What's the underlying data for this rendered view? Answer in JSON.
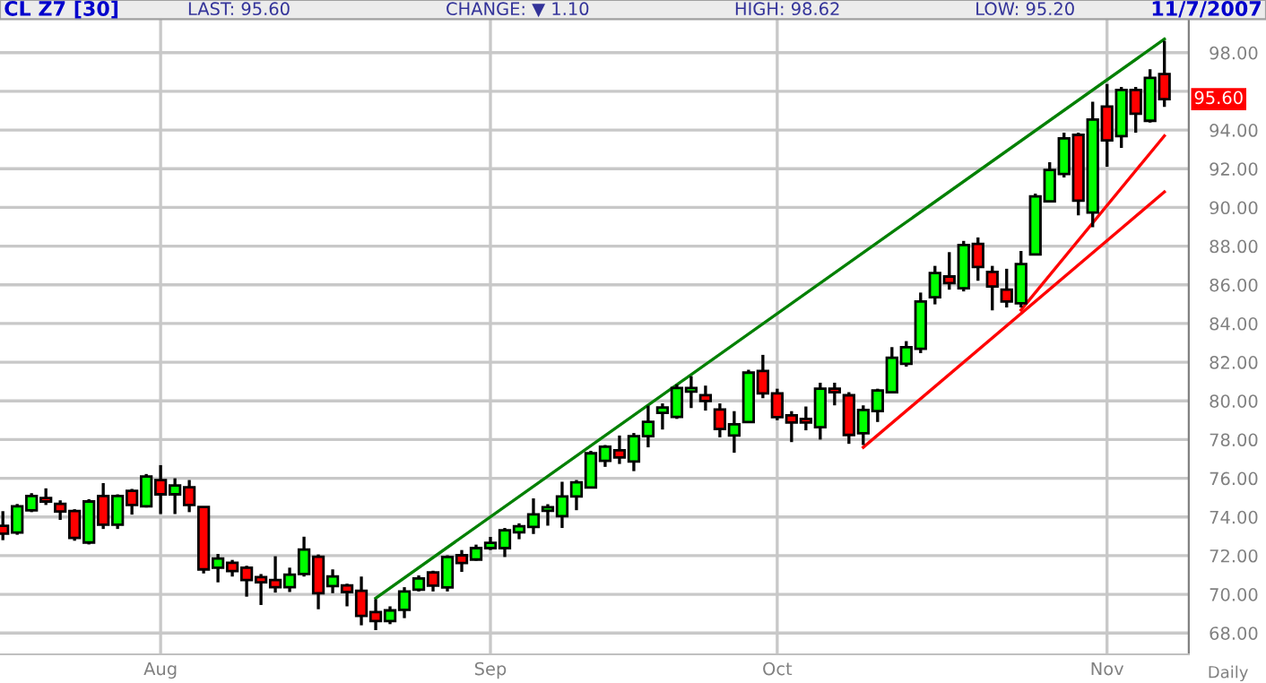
{
  "chart_data": {
    "type": "candlestick",
    "title": "CL Z7 [30]",
    "annotations": [
      "LAST: 95.60",
      "CHANGE: ▼ 1.10",
      "HIGH: 98.62",
      "LOW: 95.20",
      "11/7/2007",
      "Daily",
      {
        "text": "95.60",
        "y": 95.6
      }
    ],
    "categories": [
      null,
      null,
      null,
      null,
      null,
      null,
      null,
      null,
      null,
      null,
      null,
      "Aug",
      null,
      null,
      null,
      null,
      null,
      null,
      null,
      null,
      null,
      null,
      null,
      null,
      null,
      null,
      null,
      null,
      null,
      null,
      null,
      null,
      null,
      null,
      "Sep",
      null,
      null,
      null,
      null,
      null,
      null,
      null,
      null,
      null,
      null,
      null,
      null,
      null,
      null,
      null,
      null,
      null,
      null,
      null,
      "Oct",
      null,
      null,
      null,
      null,
      null,
      null,
      null,
      null,
      null,
      null,
      null,
      null,
      null,
      null,
      null,
      null,
      null,
      null,
      null,
      null,
      null,
      null,
      "Nov",
      null,
      null,
      null,
      null
    ],
    "ohlc": [
      [
        73.54,
        74.3,
        72.8,
        73.14
      ],
      [
        73.2,
        74.67,
        73.08,
        74.55
      ],
      [
        74.34,
        75.23,
        74.25,
        75.08
      ],
      [
        74.98,
        75.48,
        74.62,
        74.8
      ],
      [
        74.68,
        74.86,
        73.85,
        74.28
      ],
      [
        74.31,
        74.4,
        72.77,
        72.92
      ],
      [
        72.68,
        74.92,
        72.58,
        74.8
      ],
      [
        75.08,
        75.75,
        73.38,
        73.6
      ],
      [
        73.6,
        75.17,
        73.38,
        75.08
      ],
      [
        75.35,
        75.45,
        74.12,
        74.62
      ],
      [
        74.55,
        76.22,
        74.49,
        76.09
      ],
      [
        75.91,
        76.68,
        74.15,
        75.17
      ],
      [
        75.17,
        76.0,
        74.15,
        75.63
      ],
      [
        75.54,
        75.91,
        74.25,
        74.62
      ],
      [
        74.52,
        74.52,
        71.08,
        71.29
      ],
      [
        71.38,
        72.09,
        70.62,
        71.85
      ],
      [
        71.63,
        71.78,
        70.92,
        71.2
      ],
      [
        71.38,
        71.48,
        69.88,
        70.74
      ],
      [
        70.89,
        71.05,
        69.45,
        70.62
      ],
      [
        70.74,
        71.97,
        70.09,
        70.37
      ],
      [
        70.37,
        71.38,
        70.12,
        71.02
      ],
      [
        71.05,
        72.98,
        70.92,
        72.31
      ],
      [
        71.94,
        72.06,
        69.23,
        70.06
      ],
      [
        70.43,
        71.29,
        70.06,
        70.92
      ],
      [
        70.46,
        70.55,
        69.38,
        70.12
      ],
      [
        70.18,
        70.92,
        68.4,
        68.89
      ],
      [
        69.08,
        69.75,
        68.15,
        68.62
      ],
      [
        68.62,
        69.38,
        68.46,
        69.17
      ],
      [
        69.2,
        70.37,
        68.77,
        70.15
      ],
      [
        70.24,
        70.98,
        70.15,
        70.82
      ],
      [
        71.13,
        71.22,
        70.15,
        70.45
      ],
      [
        70.36,
        72.02,
        70.15,
        71.93
      ],
      [
        72.02,
        72.29,
        71.16,
        71.62
      ],
      [
        71.8,
        72.57,
        71.74,
        72.39
      ],
      [
        72.39,
        72.97,
        72.29,
        72.66
      ],
      [
        72.39,
        73.43,
        71.93,
        73.31
      ],
      [
        73.21,
        73.67,
        72.85,
        73.52
      ],
      [
        73.49,
        74.96,
        73.12,
        74.13
      ],
      [
        74.32,
        74.66,
        73.55,
        74.5
      ],
      [
        74.04,
        75.82,
        73.43,
        75.06
      ],
      [
        75.06,
        75.91,
        74.35,
        75.79
      ],
      [
        75.52,
        77.42,
        75.52,
        77.29
      ],
      [
        76.9,
        77.72,
        76.59,
        77.63
      ],
      [
        77.45,
        78.21,
        76.74,
        77.08
      ],
      [
        76.87,
        78.34,
        76.37,
        78.18
      ],
      [
        78.18,
        79.75,
        77.6,
        78.92
      ],
      [
        79.38,
        79.87,
        78.52,
        79.66
      ],
      [
        79.17,
        80.85,
        79.07,
        80.67
      ],
      [
        80.48,
        81.28,
        79.63,
        80.67
      ],
      [
        80.3,
        80.79,
        79.5,
        79.99
      ],
      [
        79.56,
        79.87,
        78.12,
        78.55
      ],
      [
        78.21,
        79.47,
        77.32,
        78.79
      ],
      [
        78.91,
        81.61,
        78.91,
        81.46
      ],
      [
        81.55,
        82.38,
        80.14,
        80.39
      ],
      [
        80.39,
        80.63,
        79.0,
        79.16
      ],
      [
        79.25,
        79.47,
        77.87,
        78.88
      ],
      [
        79.07,
        79.71,
        78.48,
        78.88
      ],
      [
        78.64,
        80.94,
        78.0,
        80.63
      ],
      [
        80.63,
        80.94,
        79.77,
        80.45
      ],
      [
        80.29,
        80.45,
        77.78,
        78.24
      ],
      [
        78.33,
        79.77,
        77.72,
        79.53
      ],
      [
        79.47,
        80.63,
        78.91,
        80.54
      ],
      [
        80.45,
        82.78,
        80.39,
        82.23
      ],
      [
        81.92,
        83.09,
        81.77,
        82.78
      ],
      [
        82.69,
        85.6,
        82.47,
        85.14
      ],
      [
        85.36,
        86.98,
        84.99,
        86.61
      ],
      [
        86.43,
        87.69,
        85.75,
        86.09
      ],
      [
        85.82,
        88.27,
        85.66,
        88.06
      ],
      [
        88.12,
        88.45,
        86.21,
        86.92
      ],
      [
        86.67,
        86.98,
        84.68,
        85.91
      ],
      [
        85.75,
        86.83,
        84.83,
        85.14
      ],
      [
        85.05,
        87.75,
        84.83,
        87.07
      ],
      [
        87.57,
        90.72,
        87.57,
        90.57
      ],
      [
        90.32,
        92.34,
        90.26,
        91.94
      ],
      [
        91.73,
        93.87,
        91.55,
        93.57
      ],
      [
        93.75,
        93.87,
        89.59,
        90.35
      ],
      [
        89.74,
        95.46,
        88.98,
        94.54
      ],
      [
        95.22,
        96.38,
        92.1,
        93.47
      ],
      [
        93.69,
        96.23,
        93.08,
        96.07
      ],
      [
        96.07,
        96.23,
        93.87,
        94.85
      ],
      [
        94.48,
        97.14,
        94.39,
        96.7
      ],
      [
        96.9,
        98.62,
        95.2,
        95.6
      ]
    ],
    "colors": [
      "#ff0000",
      "#00ff00",
      "#00ff00",
      "#ff0000",
      "#ff0000",
      "#ff0000",
      "#00ff00",
      "#ff0000",
      "#00ff00",
      "#ff0000",
      "#00ff00",
      "#ff0000",
      "#00ff00",
      "#ff0000",
      "#ff0000",
      "#00ff00",
      "#ff0000",
      "#ff0000",
      "#ff0000",
      "#ff0000",
      "#00ff00",
      "#00ff00",
      "#ff0000",
      "#00ff00",
      "#ff0000",
      "#ff0000",
      "#ff0000",
      "#00ff00",
      "#00ff00",
      "#00ff00",
      "#ff0000",
      "#00ff00",
      "#ff0000",
      "#00ff00",
      "#00ff00",
      "#00ff00",
      "#00ff00",
      "#00ff00",
      "#00ff00",
      "#00ff00",
      "#00ff00",
      "#00ff00",
      "#00ff00",
      "#ff0000",
      "#00ff00",
      "#00ff00",
      "#00ff00",
      "#00ff00",
      "#00ff00",
      "#ff0000",
      "#ff0000",
      "#00ff00",
      "#00ff00",
      "#ff0000",
      "#ff0000",
      "#ff0000",
      "#ff0000",
      "#00ff00",
      "#ff0000",
      "#ff0000",
      "#00ff00",
      "#00ff00",
      "#00ff00",
      "#00ff00",
      "#00ff00",
      "#00ff00",
      "#ff0000",
      "#00ff00",
      "#ff0000",
      "#ff0000",
      "#ff0000",
      "#00ff00",
      "#00ff00",
      "#00ff00",
      "#00ff00",
      "#ff0000",
      "#00ff00",
      "#ff0000",
      "#00ff00",
      "#ff0000",
      "#00ff00",
      "#ff0000"
    ],
    "series": [
      {
        "type": "line",
        "color": "#008000",
        "values": [
          null,
          null,
          null,
          null,
          null,
          null,
          null,
          null,
          null,
          null,
          null,
          null,
          null,
          null,
          null,
          null,
          null,
          null,
          null,
          null,
          null,
          null,
          null,
          null,
          null,
          null,
          69.8,
          null,
          null,
          null,
          null,
          null,
          null,
          null,
          null,
          null,
          null,
          null,
          null,
          null,
          null,
          null,
          null,
          null,
          null,
          null,
          null,
          null,
          null,
          null,
          null,
          null,
          null,
          null,
          null,
          null,
          null,
          null,
          null,
          null,
          null,
          null,
          null,
          null,
          null,
          null,
          null,
          null,
          null,
          null,
          null,
          null,
          null,
          null,
          null,
          null,
          null,
          null,
          null,
          null,
          null,
          98.7
        ]
      },
      {
        "type": "line",
        "color": "#ff0000",
        "values": [
          null,
          null,
          null,
          null,
          null,
          null,
          null,
          null,
          null,
          null,
          null,
          null,
          null,
          null,
          null,
          null,
          null,
          null,
          null,
          null,
          null,
          null,
          null,
          null,
          null,
          null,
          null,
          null,
          null,
          null,
          null,
          null,
          null,
          null,
          null,
          null,
          null,
          null,
          null,
          null,
          null,
          null,
          null,
          null,
          null,
          null,
          null,
          null,
          null,
          null,
          null,
          null,
          null,
          null,
          null,
          null,
          null,
          null,
          null,
          null,
          77.6,
          null,
          null,
          null,
          null,
          null,
          null,
          null,
          null,
          null,
          null,
          null,
          null,
          null,
          null,
          null,
          null,
          null,
          null,
          null,
          null,
          90.8
        ]
      },
      {
        "type": "line",
        "color": "#ff0000",
        "values": [
          null,
          null,
          null,
          null,
          null,
          null,
          null,
          null,
          null,
          null,
          null,
          null,
          null,
          null,
          null,
          null,
          null,
          null,
          null,
          null,
          null,
          null,
          null,
          null,
          null,
          null,
          null,
          null,
          null,
          null,
          null,
          null,
          null,
          null,
          null,
          null,
          null,
          null,
          null,
          null,
          null,
          null,
          null,
          null,
          null,
          null,
          null,
          null,
          null,
          null,
          null,
          null,
          null,
          null,
          null,
          null,
          null,
          null,
          null,
          null,
          null,
          null,
          null,
          null,
          null,
          null,
          null,
          null,
          null,
          null,
          null,
          84.7,
          null,
          null,
          null,
          null,
          null,
          null,
          null,
          null,
          null,
          93.7
        ]
      }
    ],
    "ylim": [
      66.9,
      99.7
    ],
    "yticks": [
      {
        "value": 68,
        "label": "68.00"
      },
      {
        "value": 70,
        "label": "70.00"
      },
      {
        "value": 72,
        "label": "72.00"
      },
      {
        "value": 74,
        "label": "74.00"
      },
      {
        "value": 76,
        "label": "76.00"
      },
      {
        "value": 78,
        "label": "78.00"
      },
      {
        "value": 80,
        "label": "80.00"
      },
      {
        "value": 82,
        "label": "82.00"
      },
      {
        "value": 84,
        "label": "84.00"
      },
      {
        "value": 86,
        "label": "86.00"
      },
      {
        "value": 88,
        "label": "88.00"
      },
      {
        "value": 90,
        "label": "90.00"
      },
      {
        "value": 92,
        "label": "92.00"
      },
      {
        "value": 94,
        "label": "94.00"
      },
      {
        "value": 96,
        "label": null
      },
      {
        "value": 98,
        "label": "98.00"
      }
    ],
    "grid": true
  }
}
